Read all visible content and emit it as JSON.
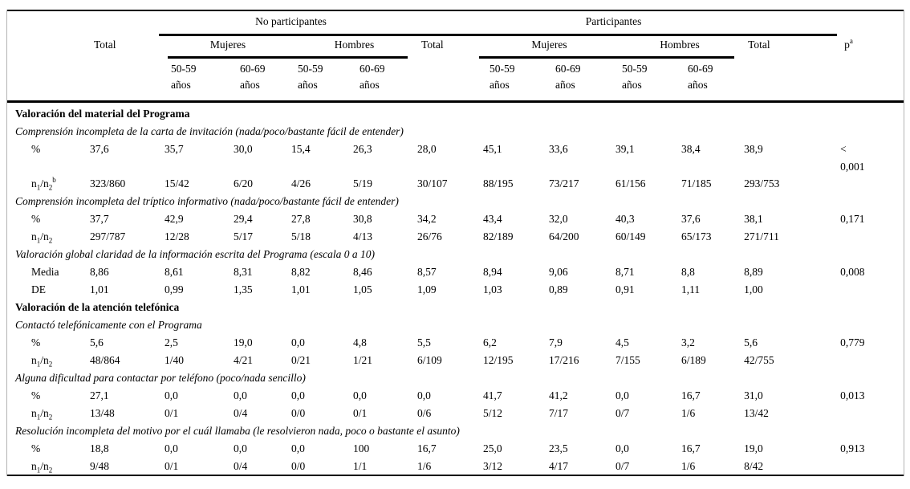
{
  "table": {
    "header": {
      "no_participants": "No participantes",
      "participants": "Participantes",
      "total": "Total",
      "women": "Mujeres",
      "men": "Hombres",
      "age_1": "50-59",
      "age_2": "60-69",
      "years": "años",
      "p": "p",
      "p_sup": "a"
    },
    "rows": [
      {
        "type": "section",
        "text": "Valoración del material del Programa"
      },
      {
        "type": "desc",
        "text": "Comprensión incompleta de la carta de invitación (nada/poco/bastante fácil de entender)"
      },
      {
        "type": "data",
        "label": [
          {
            "t": "%"
          }
        ],
        "cells": [
          "37,6",
          "35,7",
          "30,0",
          "15,4",
          "26,3",
          "28,0",
          "45,1",
          "33,6",
          "39,1",
          "38,4",
          "38,9",
          "<\n0,001"
        ]
      },
      {
        "type": "data",
        "label": [
          {
            "t": "n"
          },
          {
            "sub": "1"
          },
          {
            "t": "/n"
          },
          {
            "sub": "2"
          },
          {
            "sup": "b"
          }
        ],
        "cells": [
          "323/860",
          "15/42",
          "6/20",
          "4/26",
          "5/19",
          "30/107",
          "88/195",
          "73/217",
          "61/156",
          "71/185",
          "293/753",
          ""
        ]
      },
      {
        "type": "desc",
        "text": "Comprensión incompleta del tríptico informativo (nada/poco/bastante fácil de entender)"
      },
      {
        "type": "data",
        "label": [
          {
            "t": "%"
          }
        ],
        "cells": [
          "37,7",
          "42,9",
          "29,4",
          "27,8",
          "30,8",
          "34,2",
          "43,4",
          "32,0",
          "40,3",
          "37,6",
          "38,1",
          "0,171"
        ]
      },
      {
        "type": "data",
        "label": [
          {
            "t": "n"
          },
          {
            "sub": "1"
          },
          {
            "t": "/n"
          },
          {
            "sub": "2"
          }
        ],
        "cells": [
          "297/787",
          "12/28",
          "5/17",
          "5/18",
          "4/13",
          "26/76",
          "82/189",
          "64/200",
          "60/149",
          "65/173",
          "271/711",
          ""
        ]
      },
      {
        "type": "desc",
        "text": "Valoración global claridad de la información escrita del Programa (escala 0 a 10)"
      },
      {
        "type": "data",
        "label": [
          {
            "t": "Media"
          }
        ],
        "cells": [
          "8,86",
          "8,61",
          "8,31",
          "8,82",
          "8,46",
          "8,57",
          "8,94",
          "9,06",
          "8,71",
          "8,8",
          "8,89",
          "0,008"
        ]
      },
      {
        "type": "data",
        "label": [
          {
            "t": "DE"
          }
        ],
        "cells": [
          "1,01",
          "0,99",
          "1,35",
          "1,01",
          "1,05",
          "1,09",
          "1,03",
          "0,89",
          "0,91",
          "1,11",
          "1,00",
          ""
        ]
      },
      {
        "type": "section",
        "text": "Valoración de la atención telefónica"
      },
      {
        "type": "desc",
        "text": "Contactó telefónicamente con el Programa"
      },
      {
        "type": "data",
        "label": [
          {
            "t": "%"
          }
        ],
        "cells": [
          "5,6",
          "2,5",
          "19,0",
          "0,0",
          "4,8",
          "5,5",
          "6,2",
          "7,9",
          "4,5",
          "3,2",
          "5,6",
          "0,779"
        ]
      },
      {
        "type": "data",
        "label": [
          {
            "t": "n"
          },
          {
            "sub": "1"
          },
          {
            "t": "/n"
          },
          {
            "sub": "2"
          }
        ],
        "cells": [
          "48/864",
          "1/40",
          "4/21",
          "0/21",
          "1/21",
          "6/109",
          "12/195",
          "17/216",
          "7/155",
          "6/189",
          "42/755",
          ""
        ]
      },
      {
        "type": "desc",
        "text": "Alguna dificultad para contactar por teléfono (poco/nada sencillo)"
      },
      {
        "type": "data",
        "label": [
          {
            "t": "%"
          }
        ],
        "cells": [
          "27,1",
          "0,0",
          "0,0",
          "0,0",
          "0,0",
          "0,0",
          "41,7",
          "41,2",
          "0,0",
          "16,7",
          "31,0",
          "0,013"
        ]
      },
      {
        "type": "data",
        "label": [
          {
            "t": "n"
          },
          {
            "sub": "1"
          },
          {
            "t": "/n"
          },
          {
            "sub": "2"
          }
        ],
        "cells": [
          "13/48",
          "0/1",
          "0/4",
          "0/0",
          "0/1",
          "0/6",
          "5/12",
          "7/17",
          "0/7",
          "1/6",
          "13/42",
          ""
        ]
      },
      {
        "type": "desc",
        "text": "Resolución incompleta del motivo por el cuál llamaba (le resolvieron nada, poco o bastante el asunto)"
      },
      {
        "type": "data",
        "label": [
          {
            "t": "%"
          }
        ],
        "cells": [
          "18,8",
          "0,0",
          "0,0",
          "0,0",
          "100",
          "16,7",
          "25,0",
          "23,5",
          "0,0",
          "16,7",
          "19,0",
          "0,913"
        ]
      },
      {
        "type": "data",
        "label": [
          {
            "t": "n"
          },
          {
            "sub": "1"
          },
          {
            "t": "/n"
          },
          {
            "sub": "2"
          }
        ],
        "cells": [
          "9/48",
          "0/1",
          "0/4",
          "0/0",
          "1/1",
          "1/6",
          "3/12",
          "4/17",
          "0/7",
          "1/6",
          "8/42",
          ""
        ]
      }
    ]
  }
}
